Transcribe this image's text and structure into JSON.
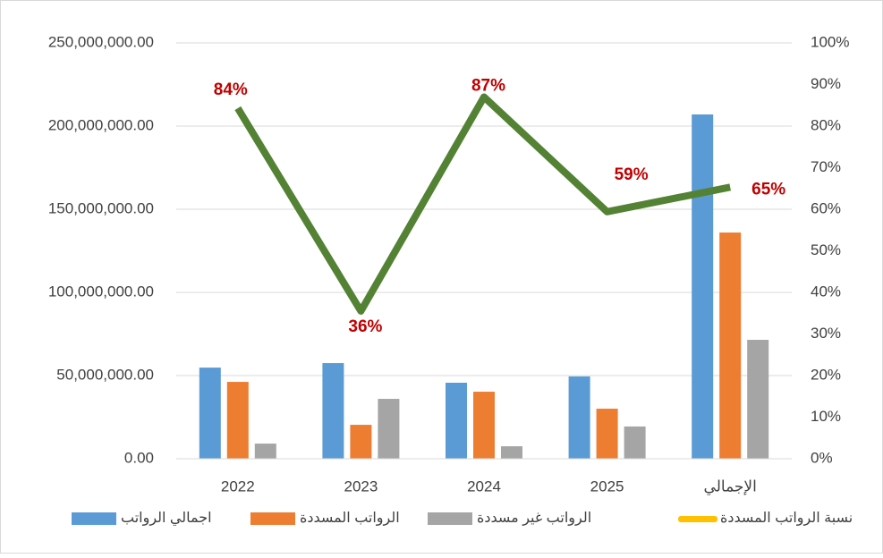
{
  "chart_data": {
    "type": "bar",
    "categories": [
      "2022",
      "2023",
      "2024",
      "2025",
      "الإجمالي"
    ],
    "series": [
      {
        "name": "اجمالي الرواتب",
        "color": "#5b9bd5",
        "values": [
          54800000,
          57500000,
          45700000,
          49500000,
          207000000
        ]
      },
      {
        "name": "الرواتب المسددة",
        "color": "#ed7d31",
        "values": [
          46200000,
          20400000,
          40300000,
          30100000,
          136000000
        ]
      },
      {
        "name": "الرواتب غير مسددة",
        "color": "#a5a5a5",
        "values": [
          9100000,
          36000000,
          7500000,
          19400000,
          71500000
        ]
      },
      {
        "name": "نسبة الرواتب المسددة",
        "type": "line",
        "axis": "y2",
        "color": "#ffc000",
        "line_color": "#548235",
        "label_color": "#c00000",
        "values": [
          84.3,
          35.5,
          87,
          59.4,
          65.3
        ],
        "value_labels": [
          "84%",
          "36%",
          "87%",
          "59%",
          "65%"
        ]
      }
    ],
    "ylim": [
      0,
      250000000
    ],
    "yticks": [
      {
        "value": 0,
        "label": "0.00"
      },
      {
        "value": 50000000,
        "label": "50,000,000.00"
      },
      {
        "value": 100000000,
        "label": "100,000,000.00"
      },
      {
        "value": 150000000,
        "label": "150,000,000.00"
      },
      {
        "value": 200000000,
        "label": "200,000,000.00"
      },
      {
        "value": 250000000,
        "label": "250,000,000.00"
      }
    ],
    "y2lim": [
      0,
      100
    ],
    "y2ticks": [
      {
        "value": 0,
        "label": "0%"
      },
      {
        "value": 10,
        "label": "10%"
      },
      {
        "value": 20,
        "label": "20%"
      },
      {
        "value": 30,
        "label": "30%"
      },
      {
        "value": 40,
        "label": "40%"
      },
      {
        "value": 50,
        "label": "50%"
      },
      {
        "value": 60,
        "label": "60%"
      },
      {
        "value": 70,
        "label": "70%"
      },
      {
        "value": 80,
        "label": "80%"
      },
      {
        "value": 90,
        "label": "90%"
      },
      {
        "value": 100,
        "label": "100%"
      }
    ],
    "grid": true,
    "legend": "bottom"
  }
}
